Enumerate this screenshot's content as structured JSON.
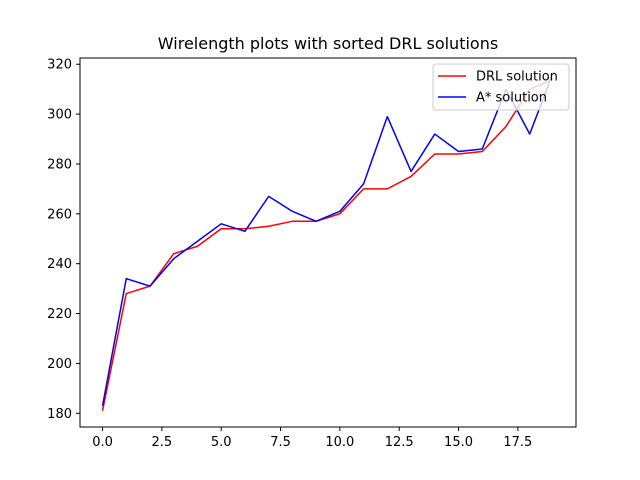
{
  "chart_data": {
    "type": "line",
    "title": "Wirelength plots with sorted DRL solutions",
    "xlabel": "",
    "ylabel": "",
    "x": [
      0,
      1,
      2,
      3,
      4,
      5,
      6,
      7,
      8,
      9,
      10,
      11,
      12,
      13,
      14,
      15,
      16,
      17,
      18,
      19
    ],
    "xlim": [
      -0.95,
      19.95
    ],
    "ylim": [
      174.5,
      322.5
    ],
    "xticks": [
      0.0,
      2.5,
      5.0,
      7.5,
      10.0,
      12.5,
      15.0,
      17.5
    ],
    "xtick_labels": [
      "0.0",
      "2.5",
      "5.0",
      "7.5",
      "10.0",
      "12.5",
      "15.0",
      "17.5"
    ],
    "yticks": [
      180,
      200,
      220,
      240,
      260,
      280,
      300,
      320
    ],
    "ytick_labels": [
      "180",
      "200",
      "220",
      "240",
      "260",
      "280",
      "300",
      "320"
    ],
    "grid": false,
    "legend_position": "top-right",
    "series": [
      {
        "name": "DRL solution",
        "color": "#ff0000",
        "values": [
          181,
          228,
          231,
          244,
          247,
          254,
          254,
          255,
          257,
          257,
          260,
          270,
          270,
          275,
          284,
          284,
          285,
          295,
          310,
          314
        ]
      },
      {
        "name": "A* solution",
        "color": "#0000ff",
        "values": [
          183,
          234,
          231,
          242,
          249,
          256,
          253,
          267,
          261,
          257,
          261,
          272,
          299,
          277,
          292,
          285,
          286,
          310,
          292,
          317
        ]
      }
    ]
  }
}
